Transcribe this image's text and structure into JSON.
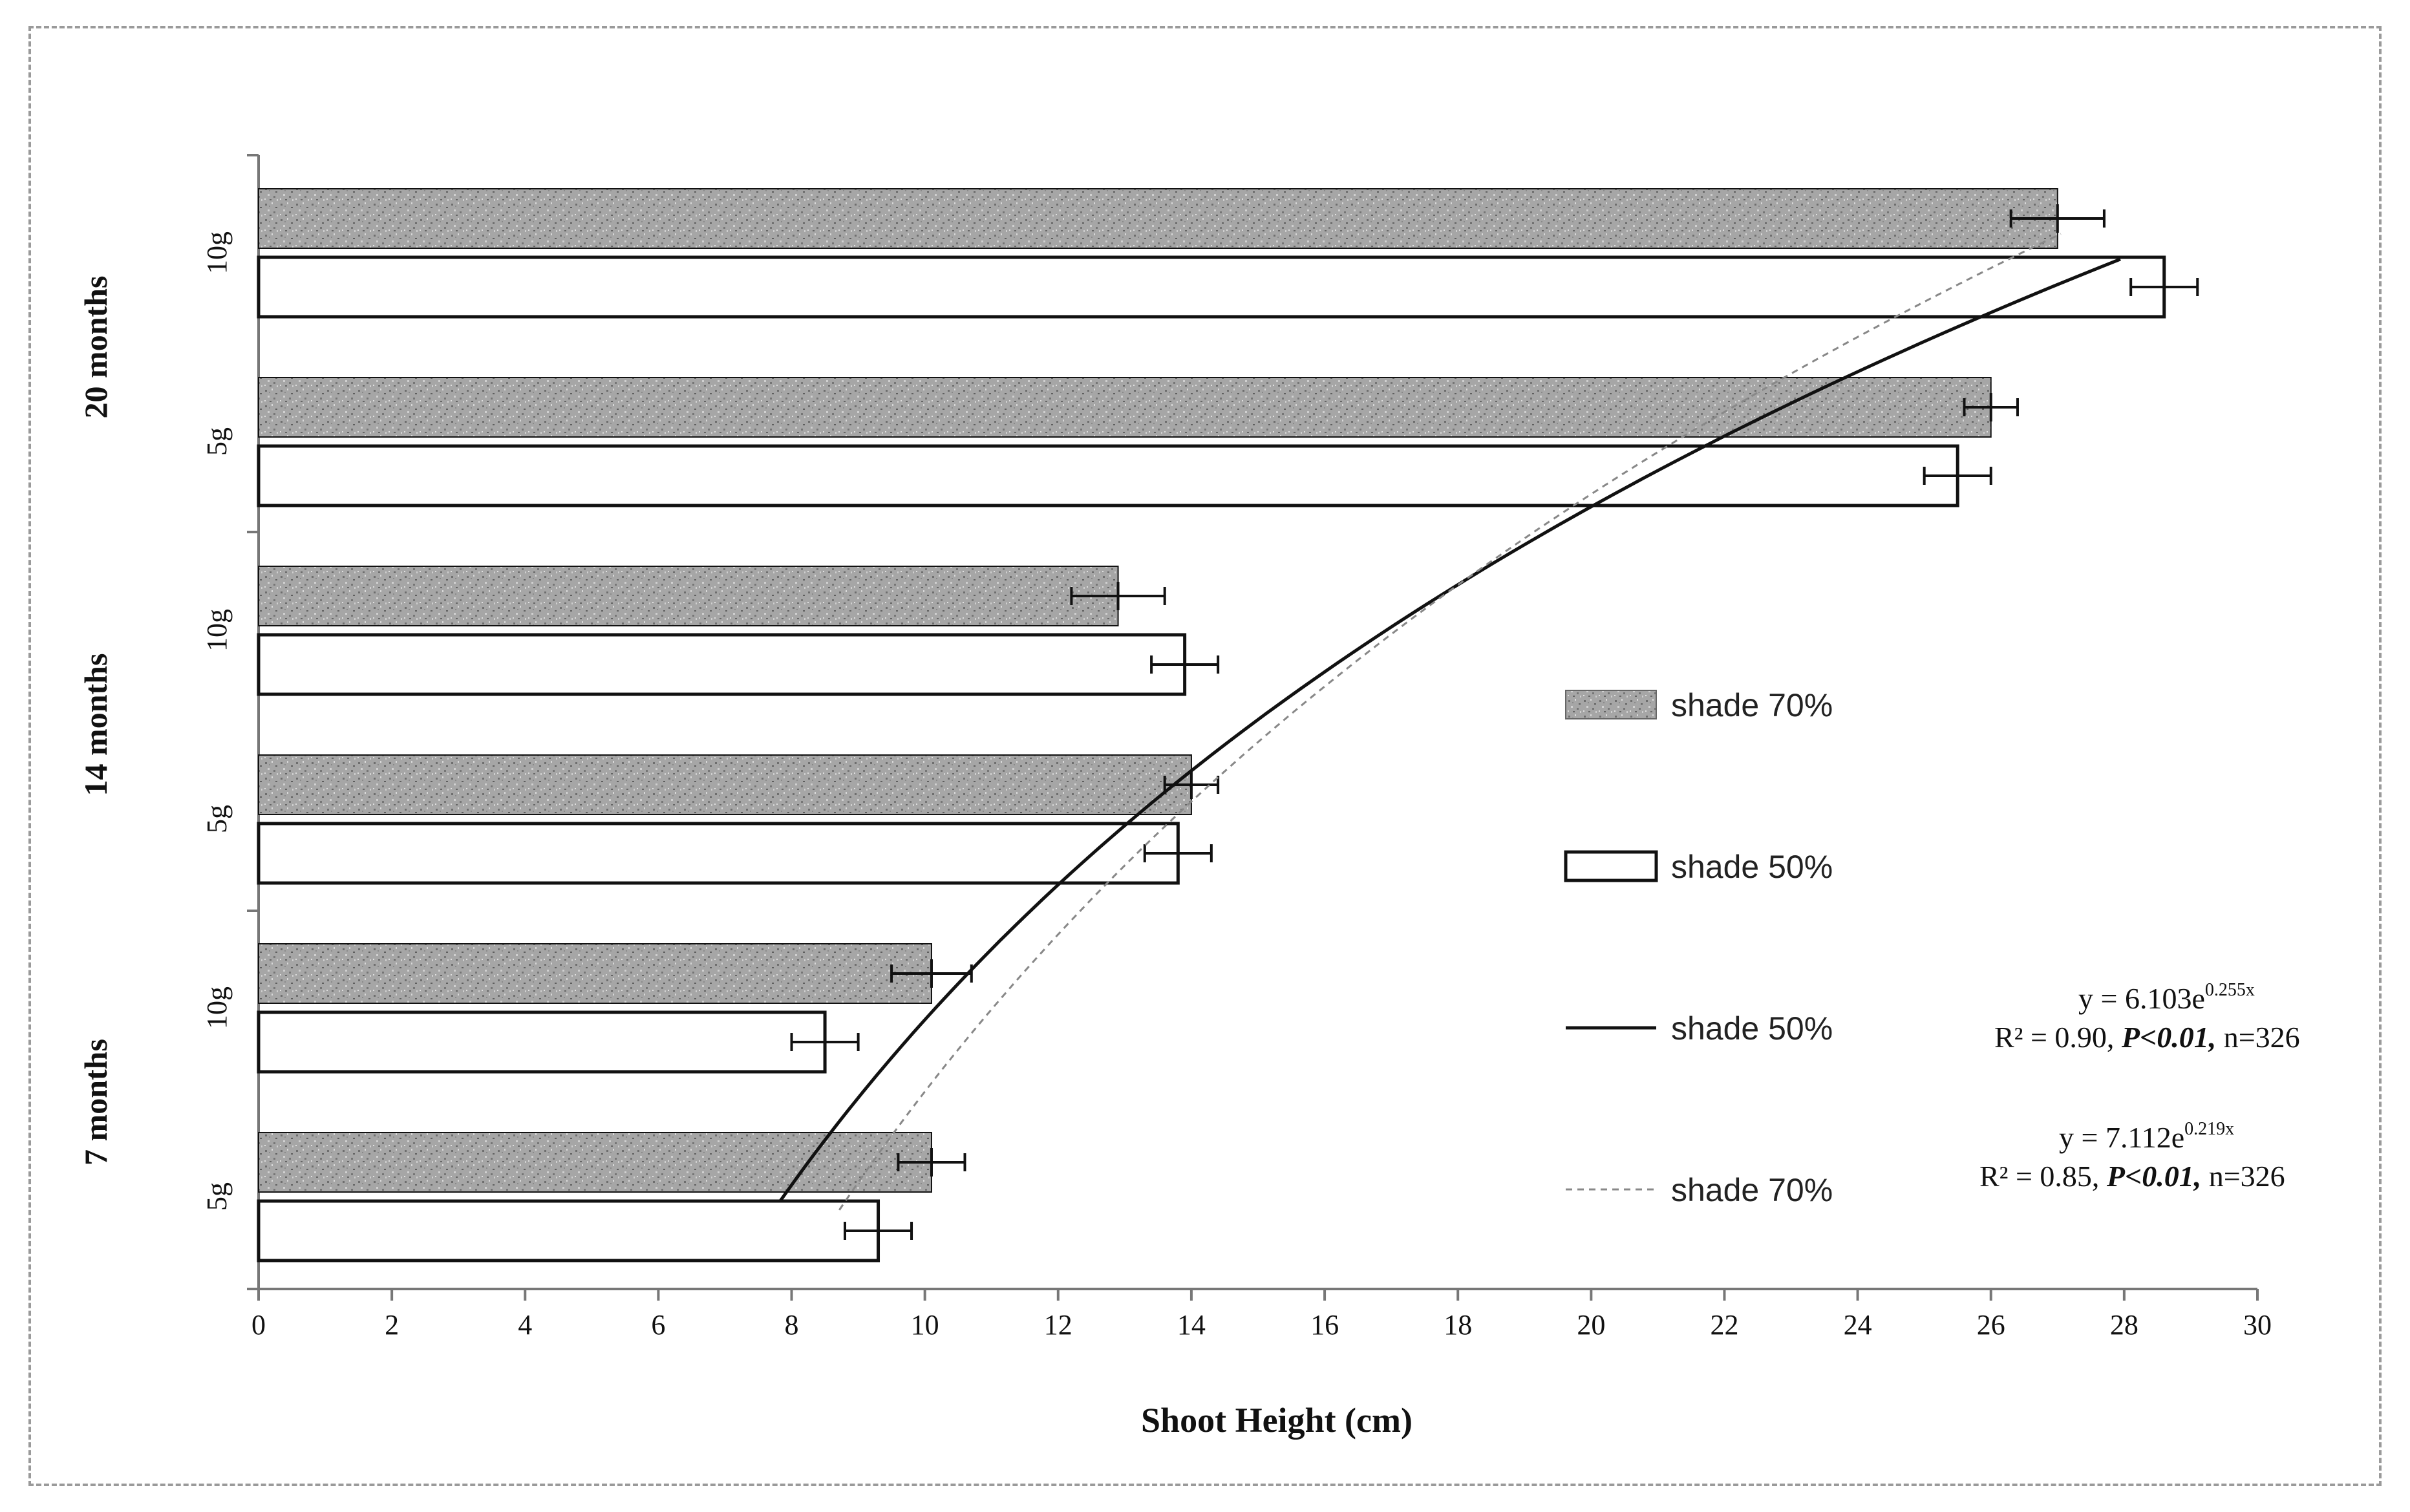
{
  "chart_data": {
    "type": "bar",
    "orientation": "horizontal",
    "xlabel": "Shoot Height (cm)",
    "xlim": [
      0,
      30
    ],
    "xticks": [
      0,
      2,
      4,
      6,
      8,
      10,
      12,
      14,
      16,
      18,
      20,
      22,
      24,
      26,
      28,
      30
    ],
    "grid": false,
    "legend_position": "right",
    "groups": [
      {
        "label": "20 months",
        "categories": [
          "10g",
          "5g"
        ]
      },
      {
        "label": "14 months",
        "categories": [
          "10g",
          "5g"
        ]
      },
      {
        "label": "7 months",
        "categories": [
          "10g",
          "5g"
        ]
      }
    ],
    "series": [
      {
        "name": "shade 70%",
        "style": "speckled-gray",
        "color": "#9a9a9a",
        "values": [
          27.0,
          26.0,
          12.9,
          14.0,
          10.1,
          10.1
        ],
        "errors": [
          0.7,
          0.4,
          0.7,
          0.4,
          0.6,
          0.5
        ]
      },
      {
        "name": "shade 50%",
        "style": "open",
        "color": "#ffffff",
        "values": [
          28.6,
          25.5,
          13.9,
          13.8,
          8.5,
          9.3
        ],
        "errors": [
          0.5,
          0.5,
          0.5,
          0.5,
          0.5,
          0.5
        ]
      }
    ],
    "bar_order_labels": [
      "20 months 10g",
      "20 months 5g",
      "14 months 10g",
      "14 months 5g",
      "7 months 10g",
      "7 months 5g"
    ],
    "trendlines": [
      {
        "name": "shade 50%",
        "style": "solid",
        "color": "#111111",
        "equation": "y = 6.103e",
        "exponent": "0.255x",
        "stats_prefix": "R² = 0.90, ",
        "stats_p": "P<0.01,",
        "stats_n": " n=326",
        "a": 6.103,
        "b": 0.255,
        "x_range": [
          7.8,
          28.2
        ]
      },
      {
        "name": "shade 70%",
        "style": "dashed",
        "color": "#888888",
        "equation": "y = 7.112e",
        "exponent": "0.219x",
        "stats_prefix": "R² = 0.85, ",
        "stats_p": "P<0.01,",
        "stats_n": " n=326",
        "a": 7.112,
        "b": 0.219,
        "x_range": [
          8.7,
          27.6
        ]
      }
    ]
  }
}
